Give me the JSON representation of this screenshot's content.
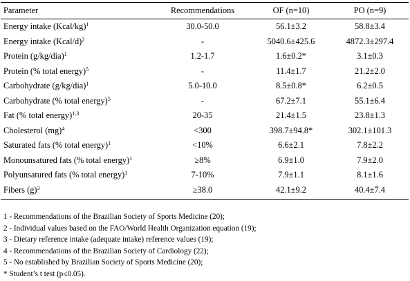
{
  "table": {
    "headers": [
      "Parameter",
      "Recommendations",
      "OF (n=10)",
      "PO (n=9)"
    ],
    "rows": [
      {
        "parameter": "Energy intake (Kcal/kg)",
        "sup": "1",
        "recommendation": "30.0-50.0",
        "of": "56.1±3.2",
        "po": "58.8±3.4"
      },
      {
        "parameter": "Energy intake (Kcal/d)",
        "sup": "2",
        "recommendation": "-",
        "of": "5040.6±425.6",
        "po": "4872.3±297.4"
      },
      {
        "parameter": "Protein (g/kg/dia)",
        "sup": "1",
        "recommendation": "1.2-1.7",
        "of": "1.6±0.2*",
        "po": "3.1±0.3"
      },
      {
        "parameter": "Protein (% total energy)",
        "sup": "5",
        "recommendation": "-",
        "of": "11.4±1.7",
        "po": "21.2±2.0"
      },
      {
        "parameter": "Carbohydrate (g/kg/dia)",
        "sup": "1",
        "recommendation": "5.0-10.0",
        "of": "8.5±0.8*",
        "po": "6.2±0.5"
      },
      {
        "parameter": "Carbohydrate (% total energy)",
        "sup": "5",
        "recommendation": "-",
        "of": "67.2±7.1",
        "po": "55.1±6.4"
      },
      {
        "parameter": "Fat (% total energy)",
        "sup": "1,3",
        "recommendation": "20-35",
        "of": "21.4±1.5",
        "po": "23.8±1.3"
      },
      {
        "parameter": "Cholesterol (mg)",
        "sup": "4",
        "recommendation": "<300",
        "of": "398.7±94.8*",
        "po": "302.1±101.3"
      },
      {
        "parameter": "Saturated fats (% total energy)",
        "sup": "1",
        "recommendation": "<10%",
        "of": "6.6±2.1",
        "po": "7.8±2.2"
      },
      {
        "parameter": "Monounsatured fats (% total energy)",
        "sup": "1",
        "recommendation": "≥8%",
        "of": "6.9±1.0",
        "po": "7.9±2.0"
      },
      {
        "parameter": "Polyunsatured fats (% total energy)",
        "sup": "1",
        "recommendation": "7-10%",
        "of": "7.9±1.1",
        "po": "8.1±1.6"
      },
      {
        "parameter": "Fibers (g)",
        "sup": "3",
        "recommendation": "≥38.0",
        "of": "42.1±9.2",
        "po": "40.4±7.4"
      }
    ]
  },
  "notes": [
    "1 - Recommendations of the Brazilian Society of Sports Medicine (20);",
    "2 - Individual values based on the FAO/World Health Organization equation (19);",
    "3 - Dietary reference intake (adequate intake) reference values (19);",
    "4 - Recommendations of the Brazilian Society of Cardiology (22);",
    "5 - No established by Brazilian Society of Sports Medicine (20);",
    "* Student’s t test (p≤0.05)."
  ]
}
